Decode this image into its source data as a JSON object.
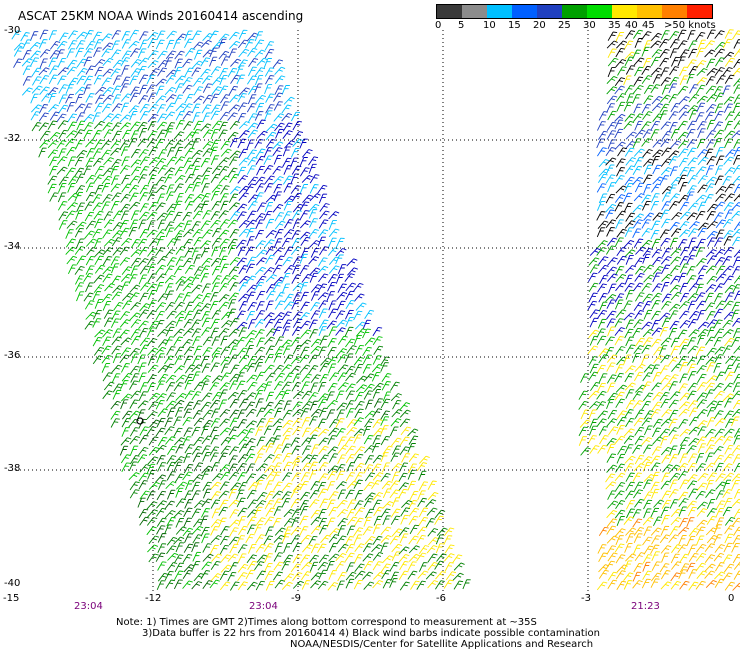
{
  "title": "ASCAT 25KM NOAA Winds 20160414 ascending",
  "legend": {
    "colors": [
      "#3a3a3a",
      "#8c8c8c",
      "#00c0ff",
      "#0060ff",
      "#2040c0",
      "#00a000",
      "#00dd00",
      "#ffe800",
      "#ffc000",
      "#ff8000",
      "#ff2000",
      "#c00000",
      "#a06040",
      "#ff80ff",
      "#c000ff",
      "#8000c0",
      "#500080"
    ],
    "labels": [
      "0",
      "5",
      "10",
      "15",
      "20",
      "25",
      "30",
      "35",
      "40",
      "45",
      ">50 knots"
    ]
  },
  "lat_labels": [
    "-30",
    "-32",
    "-34",
    "-36",
    "-38",
    "-40"
  ],
  "lon_labels": [
    "-15",
    "-12",
    "-9",
    "-6",
    "-3",
    "0"
  ],
  "time_labels": [
    "23:04",
    "23:04",
    "21:23"
  ],
  "notes": [
    "Note: 1) Times are GMT 2)Times along bottom correspond to measurement at ~35S",
    "3)Data buffer is 22 hrs from 20160414 4) Black wind barbs indicate possible contamination",
    "NOAA/NESDIS/Center for Satellite Applications and Research"
  ]
}
